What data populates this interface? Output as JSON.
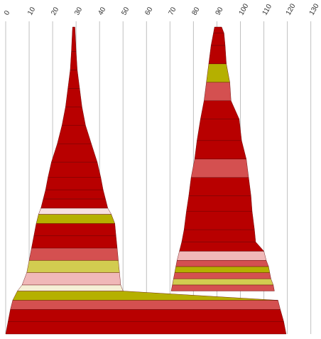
{
  "chart_data": {
    "type": "area",
    "title": "",
    "xlabel": "",
    "ylabel": "",
    "xlim": [
      0,
      130
    ],
    "x_ticks": [
      "0",
      "10",
      "20",
      "30",
      "40",
      "50",
      "60",
      "70",
      "80",
      "90",
      "100",
      "110",
      "120",
      "130"
    ],
    "grid": true,
    "legend": "none",
    "y_axis_shown": false,
    "shapes": [
      {
        "name": "left peak",
        "center_x": 29,
        "points": [
          {
            "height": 1.0,
            "left": 0.0,
            "right": 119.5
          },
          {
            "height": 0.96,
            "left": 1.0,
            "right": 118.5
          },
          {
            "height": 0.92,
            "left": 2.0,
            "right": 117.0
          },
          {
            "height": 0.89,
            "left": 3.0,
            "right": 116.0
          },
          {
            "height": 0.86,
            "left": 5.0,
            "right": 50.0
          },
          {
            "height": 0.84,
            "left": 7.0,
            "right": 49.0
          },
          {
            "height": 0.8,
            "left": 9.0,
            "right": 48.5
          },
          {
            "height": 0.76,
            "left": 10.0,
            "right": 48.0
          },
          {
            "height": 0.72,
            "left": 11.0,
            "right": 47.5
          },
          {
            "height": 0.68,
            "left": 12.0,
            "right": 47.0
          },
          {
            "height": 0.64,
            "left": 13.0,
            "right": 46.5
          },
          {
            "height": 0.61,
            "left": 14.0,
            "right": 45.0
          },
          {
            "height": 0.59,
            "left": 15.0,
            "right": 43.5
          },
          {
            "height": 0.56,
            "left": 16.0,
            "right": 42.5
          },
          {
            "height": 0.53,
            "left": 17.0,
            "right": 41.5
          },
          {
            "height": 0.49,
            "left": 18.0,
            "right": 40.5
          },
          {
            "height": 0.44,
            "left": 19.5,
            "right": 39.0
          },
          {
            "height": 0.38,
            "left": 22.0,
            "right": 36.5
          },
          {
            "height": 0.32,
            "left": 24.0,
            "right": 34.0
          },
          {
            "height": 0.26,
            "left": 25.5,
            "right": 32.5
          },
          {
            "height": 0.2,
            "left": 26.5,
            "right": 31.5
          },
          {
            "height": 0.14,
            "left": 27.5,
            "right": 30.5
          },
          {
            "height": 0.08,
            "left": 28.0,
            "right": 30.0
          },
          {
            "height": 0.0,
            "left": 28.5,
            "right": 29.5
          }
        ]
      },
      {
        "name": "right peak",
        "center_x": 89,
        "points": [
          {
            "height": 0.86,
            "left": 70.5,
            "right": 114.5
          },
          {
            "height": 0.84,
            "left": 71.0,
            "right": 114.0
          },
          {
            "height": 0.82,
            "left": 71.5,
            "right": 113.0
          },
          {
            "height": 0.8,
            "left": 72.0,
            "right": 112.5
          },
          {
            "height": 0.78,
            "left": 72.5,
            "right": 112.0
          },
          {
            "height": 0.76,
            "left": 73.0,
            "right": 111.0
          },
          {
            "height": 0.73,
            "left": 74.0,
            "right": 110.0
          },
          {
            "height": 0.7,
            "left": 75.0,
            "right": 106.5
          },
          {
            "height": 0.66,
            "left": 76.0,
            "right": 106.0
          },
          {
            "height": 0.6,
            "left": 77.0,
            "right": 105.0
          },
          {
            "height": 0.55,
            "left": 78.0,
            "right": 104.5
          },
          {
            "height": 0.49,
            "left": 79.0,
            "right": 103.5
          },
          {
            "height": 0.43,
            "left": 80.5,
            "right": 102.5
          },
          {
            "height": 0.37,
            "left": 81.5,
            "right": 100.5
          },
          {
            "height": 0.3,
            "left": 83.0,
            "right": 99.5
          },
          {
            "height": 0.24,
            "left": 84.5,
            "right": 96.0
          },
          {
            "height": 0.18,
            "left": 85.5,
            "right": 95.5
          },
          {
            "height": 0.12,
            "left": 86.5,
            "right": 94.0
          },
          {
            "height": 0.06,
            "left": 87.5,
            "right": 93.5
          },
          {
            "height": 0.02,
            "left": 88.5,
            "right": 93.0
          },
          {
            "height": 0.0,
            "left": 89.0,
            "right": 92.0
          }
        ]
      }
    ],
    "band_colors": {
      "dark_red": "#b80000",
      "red": "#d45050",
      "olive": "#b5b000",
      "yellow": "#d2cc50",
      "pink": "#f0b8b8",
      "light_pink": "#f7e0e0",
      "cream": "#f5f0d6"
    },
    "band_sequence": [
      [
        "dark_red",
        "dark_red",
        "red",
        "olive",
        "cream",
        "pink",
        "yellow",
        "red",
        "dark_red",
        "dark_red",
        "olive",
        "light_pink",
        "dark_red",
        "dark_red",
        "dark_red",
        "dark_red",
        "dark_red",
        "dark_red",
        "dark_red",
        "dark_red",
        "dark_red",
        "dark_red",
        "dark_red"
      ],
      [
        "red",
        "yellow",
        "red",
        "olive",
        "red",
        "pink",
        "dark_red",
        "dark_red",
        "dark_red",
        "dark_red",
        "dark_red",
        "red",
        "dark_red",
        "dark_red",
        "dark_red",
        "red",
        "olive",
        "dark_red",
        "dark_red",
        "dark_red"
      ]
    ]
  }
}
